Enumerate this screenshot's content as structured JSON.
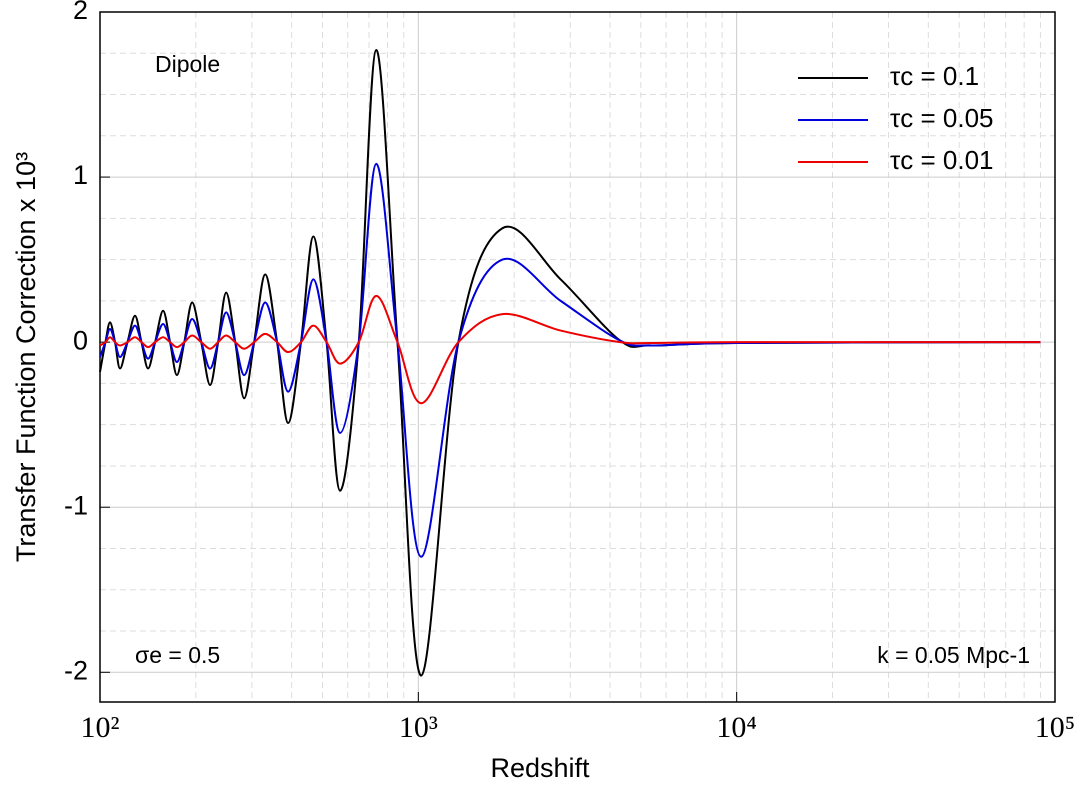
{
  "chart_data": {
    "type": "line",
    "x_label": "Redshift",
    "y_label": "Transfer Function Correction x 10³",
    "x_scale": "log",
    "grid": true,
    "legend": "upper right",
    "annotations": [
      "Dipole",
      "σe = 0.5",
      "k = 0.05 Mpc-1"
    ],
    "xlim": [
      100,
      100000
    ],
    "xticks": [
      {
        "value": 100,
        "label": "10²"
      },
      {
        "value": 1000,
        "label": "10³"
      },
      {
        "value": 10000,
        "label": "10⁴"
      },
      {
        "value": 100000,
        "label": "10⁵"
      }
    ],
    "ylim": [
      -2.18,
      2
    ],
    "yticks": [
      2,
      1,
      0,
      -1,
      -2
    ],
    "x": [
      100,
      104,
      107.5,
      111.5,
      115.6,
      122,
      128.8,
      135,
      141.6,
      149,
      157.8,
      166,
      174.4,
      184,
      194.8,
      208,
      221.7,
      235,
      249.1,
      266,
      283.7,
      305,
      330.4,
      360,
      390,
      428,
      468,
      515,
      568,
      650,
      738,
      860,
      1021,
      1336,
      1837,
      2800,
      4300,
      5400,
      10000,
      90000
    ],
    "series": [
      {
        "name": "τc = 0.1",
        "color": "#000000",
        "values": [
          -0.18,
          0,
          0.12,
          0,
          -0.16,
          0,
          0.16,
          0,
          -0.16,
          0,
          0.19,
          0,
          -0.2,
          0,
          0.24,
          0,
          -0.26,
          0,
          0.3,
          0,
          -0.34,
          0,
          0.41,
          0,
          -0.49,
          0,
          0.64,
          0,
          -0.9,
          0,
          1.77,
          0,
          -2.02,
          0,
          0.69,
          0.38,
          0.01,
          -0.02,
          -0.005,
          0
        ]
      },
      {
        "name": "τc = 0.05",
        "color": "#0000dd",
        "values": [
          -0.09,
          0,
          0.08,
          0,
          -0.09,
          0,
          0.1,
          0,
          -0.1,
          0,
          0.11,
          0,
          -0.12,
          0,
          0.14,
          0,
          -0.16,
          0,
          0.18,
          0,
          -0.2,
          0,
          0.24,
          0,
          -0.3,
          0,
          0.38,
          0,
          -0.55,
          0,
          1.08,
          0,
          -1.3,
          0,
          0.5,
          0.25,
          0.01,
          -0.02,
          -0.005,
          0
        ]
      },
      {
        "name": "τc = 0.01",
        "color": "#ee0000",
        "values": [
          -0.02,
          0,
          0.03,
          0,
          -0.02,
          0,
          0.03,
          0,
          -0.03,
          0,
          0.03,
          0,
          -0.03,
          0,
          0.04,
          0,
          -0.04,
          0,
          0.04,
          0,
          -0.04,
          0,
          0.05,
          0,
          -0.06,
          0,
          0.1,
          0,
          -0.13,
          0,
          0.28,
          0,
          -0.37,
          0,
          0.17,
          0.07,
          0,
          -0.005,
          0,
          0
        ]
      }
    ]
  }
}
